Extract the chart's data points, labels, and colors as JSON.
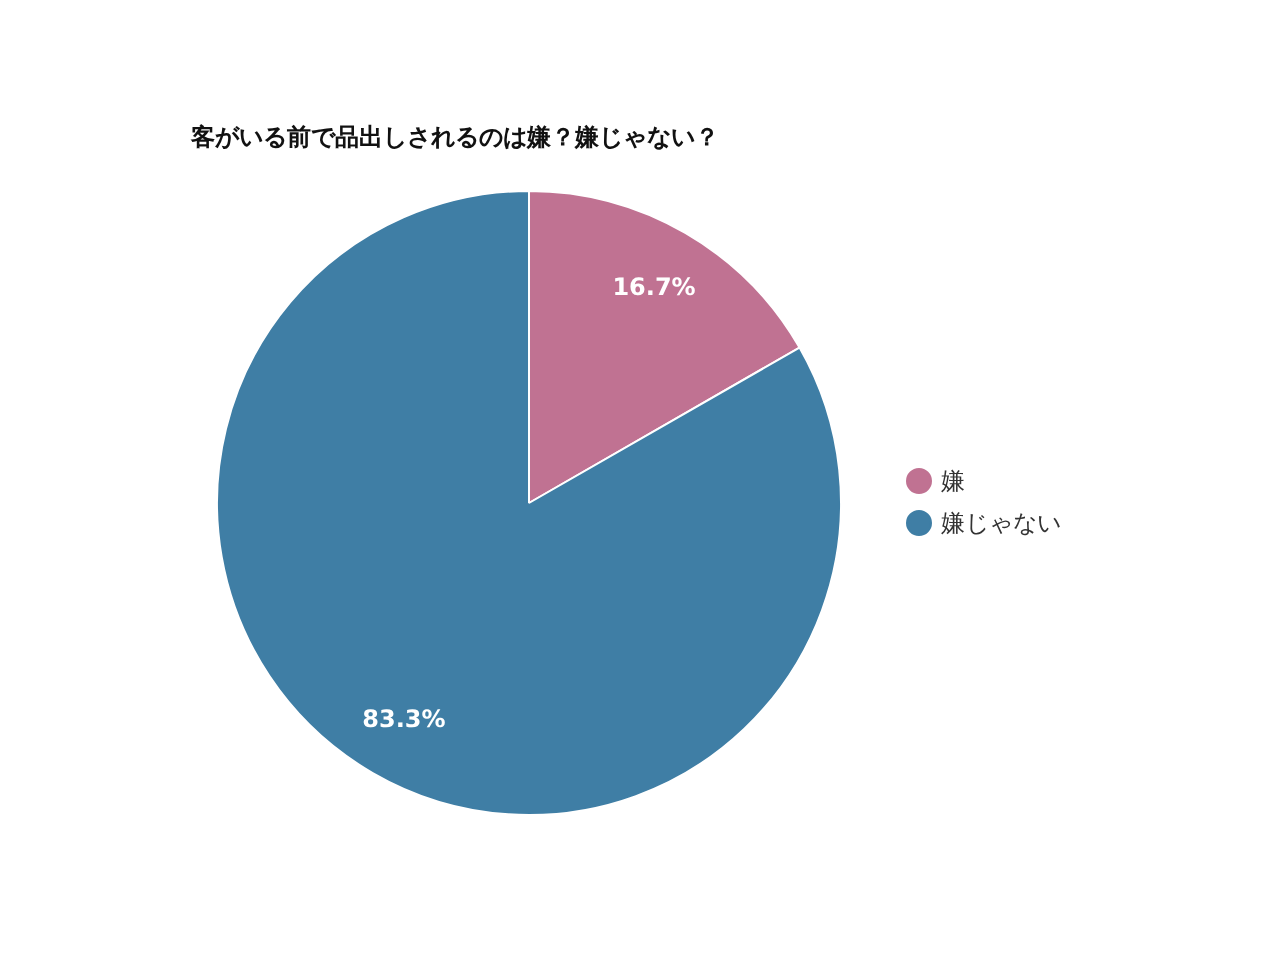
{
  "chart_data": {
    "type": "pie",
    "title": "客がいる前で品出しされるのは嫌？嫌じゃない？",
    "categories": [
      "嫌",
      "嫌じゃない"
    ],
    "values": [
      16.7,
      83.3
    ],
    "colors": [
      "#c07292",
      "#3f7ea5"
    ],
    "value_labels": [
      "16.7%",
      "83.3%"
    ],
    "legend": "right"
  }
}
